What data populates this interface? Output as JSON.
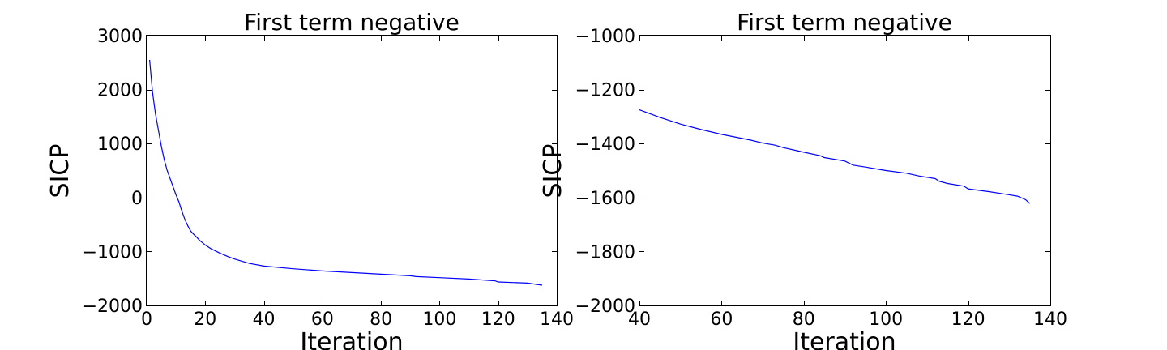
{
  "chart_data": [
    {
      "type": "line",
      "title": "First term negative",
      "xlabel": "Iteration",
      "ylabel": "SICP",
      "xlim": [
        0,
        140
      ],
      "ylim": [
        -2000,
        3000
      ],
      "xticks": [
        0,
        20,
        40,
        60,
        80,
        100,
        120,
        140
      ],
      "yticks": [
        -2000,
        -1000,
        0,
        1000,
        2000,
        3000
      ],
      "xtick_labels": [
        "0",
        "20",
        "40",
        "60",
        "80",
        "100",
        "120",
        "140"
      ],
      "ytick_labels": [
        "−2000",
        "−1000",
        "0",
        "1000",
        "2000",
        "3000"
      ],
      "grid": false,
      "color": "#0000ff",
      "series": [
        {
          "x": [
            1,
            2,
            3,
            4,
            5,
            6,
            7,
            8,
            9,
            10,
            11,
            12,
            13,
            14,
            15,
            16,
            17,
            18,
            20,
            22,
            25,
            28,
            30,
            35,
            40,
            50,
            60,
            70,
            80,
            90,
            92,
            100,
            110,
            119,
            120,
            130,
            135
          ],
          "y": [
            2550,
            1950,
            1550,
            1250,
            950,
            700,
            500,
            350,
            200,
            50,
            -80,
            -250,
            -400,
            -520,
            -620,
            -680,
            -730,
            -790,
            -880,
            -950,
            -1030,
            -1100,
            -1140,
            -1220,
            -1270,
            -1320,
            -1360,
            -1390,
            -1420,
            -1450,
            -1465,
            -1485,
            -1510,
            -1545,
            -1565,
            -1585,
            -1625
          ]
        }
      ]
    },
    {
      "type": "line",
      "title": "First term negative",
      "xlabel": "Iteration",
      "ylabel": "SICP",
      "xlim": [
        40,
        140
      ],
      "ylim": [
        -2000,
        -1000
      ],
      "xticks": [
        40,
        60,
        80,
        100,
        120,
        140
      ],
      "yticks": [
        -2000,
        -1800,
        -1600,
        -1400,
        -1200,
        -1000
      ],
      "xtick_labels": [
        "40",
        "60",
        "80",
        "100",
        "120",
        "140"
      ],
      "ytick_labels": [
        "−2000",
        "−1800",
        "−1600",
        "−1400",
        "−1200",
        "−1000"
      ],
      "grid": false,
      "color": "#0000ff",
      "series": [
        {
          "x": [
            40,
            45,
            50,
            55,
            60,
            65,
            67,
            70,
            73,
            75,
            80,
            84,
            85,
            90,
            92,
            95,
            100,
            105,
            108,
            112,
            113,
            115,
            119,
            120,
            125,
            128,
            130,
            132,
            134,
            135
          ],
          "y": [
            -1275,
            -1303,
            -1328,
            -1348,
            -1366,
            -1381,
            -1387,
            -1398,
            -1406,
            -1415,
            -1432,
            -1445,
            -1452,
            -1465,
            -1480,
            -1487,
            -1500,
            -1510,
            -1520,
            -1530,
            -1540,
            -1548,
            -1558,
            -1568,
            -1578,
            -1585,
            -1590,
            -1595,
            -1608,
            -1622
          ]
        }
      ]
    }
  ]
}
